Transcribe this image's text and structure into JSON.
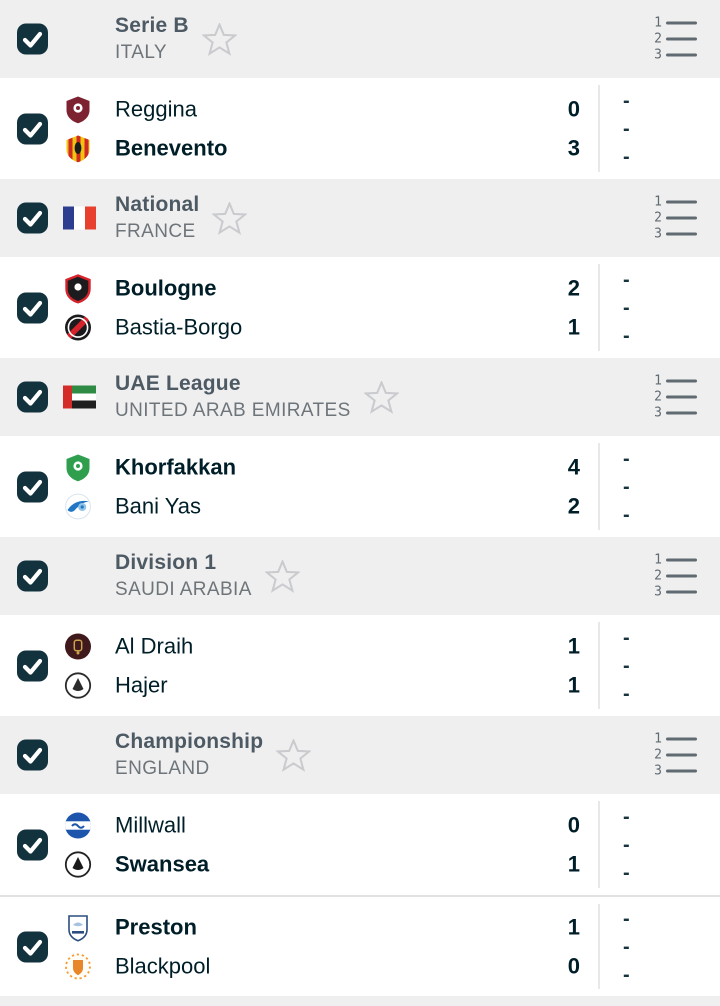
{
  "colors": {
    "header_bg": "#efeff0",
    "row_bg": "#ffffff",
    "checkbox": "#12323e",
    "team_text": "#001e28",
    "league_text": "#4d5a63",
    "country_text": "#6e757a",
    "star": "#c9cbce",
    "standings_icon": "#5f6a71",
    "divider": "#e8e8ea",
    "dash": "#17333e",
    "border": "#e2e2e4"
  },
  "standings_icon_rows": [
    "1",
    "2",
    "3"
  ],
  "checkbox_state": "checked",
  "sections": [
    {
      "league": "Serie B",
      "country": "ITALY",
      "flag": null,
      "matches": [
        {
          "home": {
            "name": "Reggina",
            "score": "0",
            "bold": false,
            "logo": "reggina"
          },
          "away": {
            "name": "Benevento",
            "score": "3",
            "bold": true,
            "logo": "benevento"
          },
          "odds": [
            "-",
            "-",
            "-"
          ]
        }
      ]
    },
    {
      "league": "National",
      "country": "FRANCE",
      "flag": "france",
      "matches": [
        {
          "home": {
            "name": "Boulogne",
            "score": "2",
            "bold": true,
            "logo": "boulogne"
          },
          "away": {
            "name": "Bastia-Borgo",
            "score": "1",
            "bold": false,
            "logo": "bastia-borgo"
          },
          "odds": [
            "-",
            "-",
            "-"
          ]
        }
      ]
    },
    {
      "league": "UAE League",
      "country": "UNITED ARAB EMIRATES",
      "flag": "uae",
      "matches": [
        {
          "home": {
            "name": "Khorfakkan",
            "score": "4",
            "bold": true,
            "logo": "khorfakkan"
          },
          "away": {
            "name": "Bani Yas",
            "score": "2",
            "bold": false,
            "logo": "bani-yas"
          },
          "odds": [
            "-",
            "-",
            "-"
          ]
        }
      ]
    },
    {
      "league": "Division 1",
      "country": "SAUDI ARABIA",
      "flag": null,
      "matches": [
        {
          "home": {
            "name": "Al Draih",
            "score": "1",
            "bold": false,
            "logo": "al-draih"
          },
          "away": {
            "name": "Hajer",
            "score": "1",
            "bold": false,
            "logo": "hajer"
          },
          "odds": [
            "-",
            "-",
            "-"
          ]
        }
      ]
    },
    {
      "league": "Championship",
      "country": "ENGLAND",
      "flag": null,
      "matches": [
        {
          "home": {
            "name": "Millwall",
            "score": "0",
            "bold": false,
            "logo": "millwall"
          },
          "away": {
            "name": "Swansea",
            "score": "1",
            "bold": true,
            "logo": "swansea"
          },
          "odds": [
            "-",
            "-",
            "-"
          ]
        },
        {
          "home": {
            "name": "Preston",
            "score": "1",
            "bold": true,
            "logo": "preston"
          },
          "away": {
            "name": "Blackpool",
            "score": "0",
            "bold": false,
            "logo": "blackpool"
          },
          "odds": [
            "-",
            "-",
            "-"
          ]
        }
      ]
    }
  ],
  "flags": {
    "france": {
      "type": "vertical-tricolor",
      "colors": [
        "#2d3e90",
        "#ffffff",
        "#e8402e"
      ]
    },
    "uae": {
      "type": "uae",
      "bar": "#d32c29",
      "stripes": [
        "#2f8a43",
        "#ffffff",
        "#1f1f1f"
      ]
    }
  },
  "logos": {
    "reggina": {
      "shape": "shield",
      "c1": "#7d2231",
      "c2": "#ffffff",
      "c3": "#7d2231"
    },
    "benevento": {
      "shape": "shieldStripes",
      "c1": "#f1c40f",
      "c2": "#cf2b24",
      "c3": "#1c1c1c"
    },
    "boulogne": {
      "shape": "shieldRing",
      "c1": "#1c1c1e",
      "c2": "#d6222a",
      "c3": "#ffffff"
    },
    "bastia-borgo": {
      "shape": "circleDiagonal",
      "c1": "#1b1b1d",
      "c2": "#d6222a",
      "c3": "#ffffff"
    },
    "khorfakkan": {
      "shape": "shield",
      "c1": "#2f9e4d",
      "c2": "#ffffff",
      "c3": "#2f9e4d"
    },
    "bani-yas": {
      "shape": "circleSwoosh",
      "c1": "#ffffff",
      "c2": "#2277c4",
      "c3": "#8fc3e8"
    },
    "al-draih": {
      "shape": "circlePlain",
      "c1": "#40191d",
      "c2": "#c9a24e",
      "c3": "#c9a24e"
    },
    "hajer": {
      "shape": "circleRing",
      "c1": "#ffffff",
      "c2": "#2b2b2b",
      "c3": "#2b2b2b"
    },
    "millwall": {
      "shape": "circleBand",
      "c1": "#1d55ad",
      "c2": "#ffffff",
      "c3": "#1d55ad"
    },
    "swansea": {
      "shape": "circleRing",
      "c1": "#ffffff",
      "c2": "#222222",
      "c3": "#1a1a1a"
    },
    "preston": {
      "shape": "crest",
      "c1": "#ffffff",
      "c2": "#2c4e7e",
      "c3": "#a7c3e2"
    },
    "blackpool": {
      "shape": "circleDotted",
      "c1": "#fffdf7",
      "c2": "#f59b33",
      "c3": "#e8872a"
    }
  }
}
